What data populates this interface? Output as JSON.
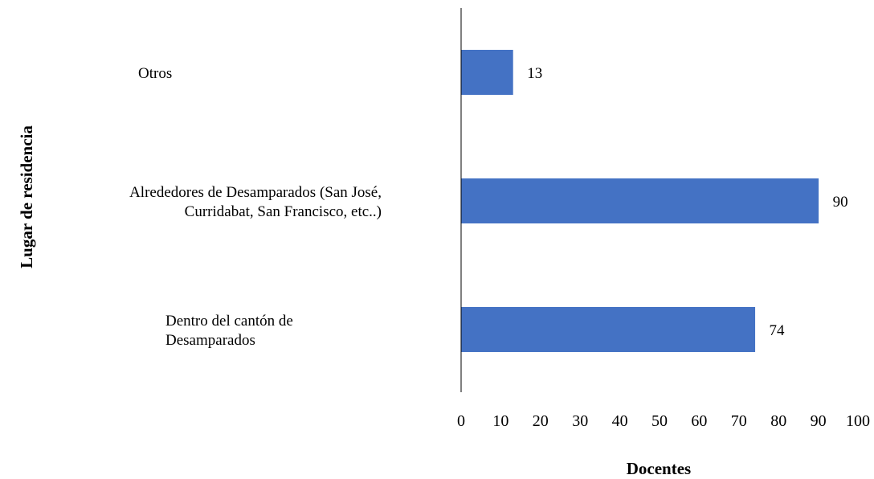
{
  "chart_data": {
    "type": "bar",
    "orientation": "horizontal",
    "categories": [
      [
        "Otros"
      ],
      [
        "Alrededores de Desamparados (San José,",
        "Curridabat, San Francisco, etc..)"
      ],
      [
        "Dentro del cantón de",
        "Desamparados"
      ]
    ],
    "values": [
      13,
      90,
      74
    ],
    "data_labels": [
      "13",
      "90",
      "74"
    ],
    "xlabel": "Docentes",
    "ylabel": "Lugar de residencia",
    "xlim": [
      0,
      100
    ],
    "xticks": [
      "0",
      "10",
      "20",
      "30",
      "40",
      "50",
      "60",
      "70",
      "80",
      "90",
      "100"
    ],
    "grid": false,
    "legend": "none",
    "bar_color": "#4472C4"
  }
}
